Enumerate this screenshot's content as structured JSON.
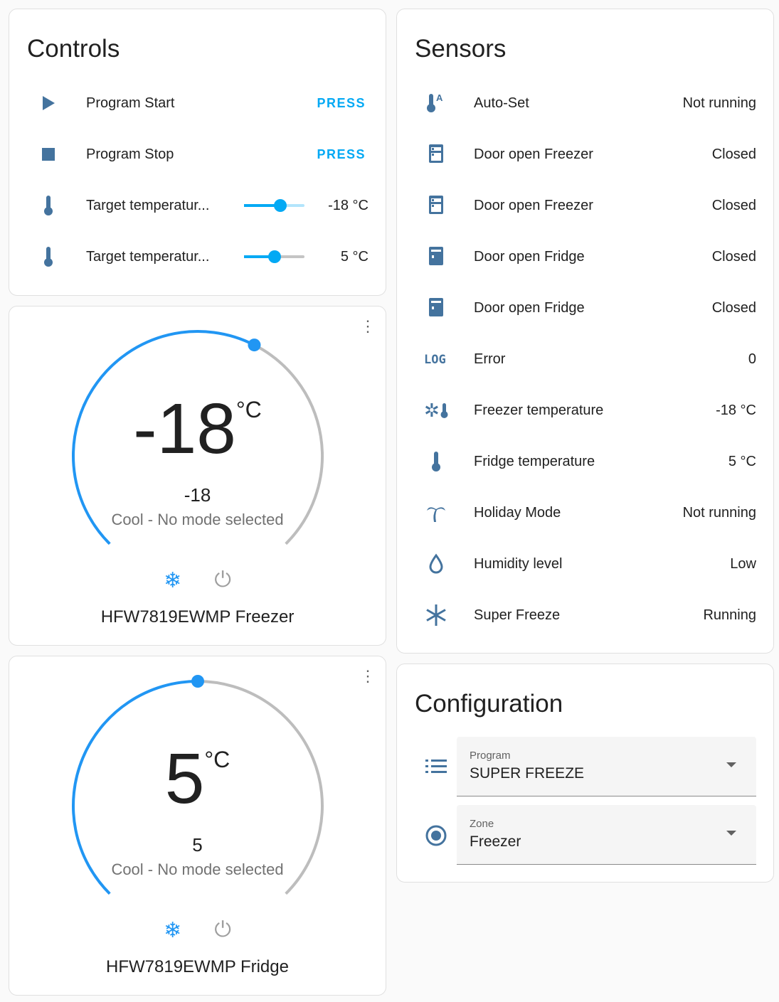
{
  "controls": {
    "title": "Controls",
    "items": [
      {
        "icon": "play-icon",
        "label": "Program Start",
        "action": "PRESS"
      },
      {
        "icon": "stop-icon",
        "label": "Program Stop",
        "action": "PRESS"
      },
      {
        "icon": "thermometer-icon",
        "label": "Target temperatur...",
        "value": "-18 °C",
        "slider_fraction": 0.6
      },
      {
        "icon": "thermometer-icon",
        "label": "Target temperatur...",
        "value": "5 °C",
        "slider_fraction": 0.5
      }
    ]
  },
  "thermostats": [
    {
      "name": "HFW7819EWMP Freezer",
      "target": "-18",
      "unit": "°C",
      "current": "-18",
      "mode": "Cool - No mode selected",
      "arc_fraction": 0.6
    },
    {
      "name": "HFW7819EWMP Fridge",
      "target": "5",
      "unit": "°C",
      "current": "5",
      "mode": "Cool - No mode selected",
      "arc_fraction": 0.5
    }
  ],
  "sensors": {
    "title": "Sensors",
    "items": [
      {
        "icon": "thermometer-auto-icon",
        "label": "Auto-Set",
        "value": "Not running"
      },
      {
        "icon": "fridge-outline-icon",
        "label": "Door open Freezer",
        "value": "Closed"
      },
      {
        "icon": "fridge-outline-icon",
        "label": "Door open Freezer",
        "value": "Closed"
      },
      {
        "icon": "fridge-icon",
        "label": "Door open Fridge",
        "value": "Closed"
      },
      {
        "icon": "fridge-icon",
        "label": "Door open Fridge",
        "value": "Closed"
      },
      {
        "icon": "log-icon",
        "label": "Error",
        "value": "0",
        "icon_text": "LOG"
      },
      {
        "icon": "snowflake-thermometer-icon",
        "label": "Freezer temperature",
        "value": "-18 °C"
      },
      {
        "icon": "thermometer-icon",
        "label": "Fridge temperature",
        "value": "5 °C"
      },
      {
        "icon": "palm-tree-icon",
        "label": "Holiday Mode",
        "value": "Not running"
      },
      {
        "icon": "water-outline-icon",
        "label": "Humidity level",
        "value": "Low"
      },
      {
        "icon": "snowflake-icon",
        "label": "Super Freeze",
        "value": "Running"
      }
    ]
  },
  "configuration": {
    "title": "Configuration",
    "selects": [
      {
        "icon": "list-icon",
        "label": "Program",
        "value": "SUPER FREEZE"
      },
      {
        "icon": "radiobox-icon",
        "label": "Zone",
        "value": "Freezer"
      }
    ]
  },
  "colors": {
    "icon": "#44739e",
    "accent": "#03a9f4",
    "dial_active": "#2196f3",
    "dial_track": "#bdbdbd"
  }
}
